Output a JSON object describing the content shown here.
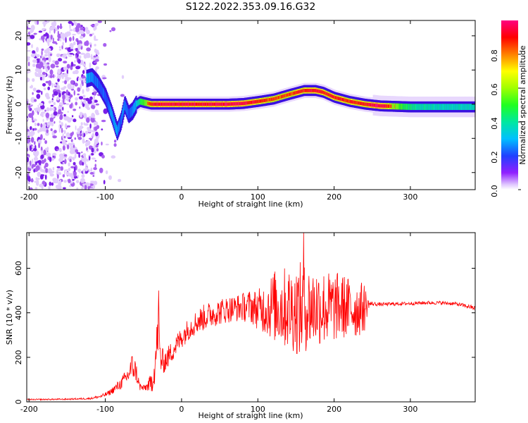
{
  "title": "S122.2022.353.09.16.G32",
  "chart_data": [
    {
      "type": "heatmap",
      "title": "S122.2022.353.09.16.G32",
      "xlabel": "Height of straight line (km)",
      "ylabel": "Frequency (Hz)",
      "xlim": [
        -203,
        385
      ],
      "ylim": [
        -25,
        24.5
      ],
      "xticks": [
        -200,
        -100,
        0,
        100,
        200,
        300
      ],
      "yticks": [
        -20,
        -10,
        0,
        10,
        20
      ],
      "colorbar": {
        "label": "Normalized spectral amplitude",
        "range": [
          0,
          1
        ],
        "ticks": [
          "0.0",
          "0.2",
          "0.4",
          "0.6",
          "0.8"
        ],
        "colormap": "hsv reversed (purple low to red high)"
      },
      "ridge": {
        "x": [
          -125,
          -118,
          -110,
          -100,
          -92,
          -85,
          -80,
          -75,
          -70,
          -65,
          -60,
          -55,
          -50,
          -40,
          -30,
          -20,
          0,
          30,
          60,
          80,
          100,
          120,
          140,
          160,
          175,
          185,
          200,
          220,
          240,
          260,
          300,
          340,
          385
        ],
        "frequency": [
          7.5,
          8,
          6,
          2,
          -3,
          -8,
          -5,
          0,
          -3,
          -2,
          0,
          0.8,
          0.5,
          0,
          0,
          0,
          0,
          0,
          0,
          0.2,
          0.8,
          1.5,
          2.8,
          4,
          4,
          3.5,
          2,
          0.8,
          0,
          -0.5,
          -0.8,
          -0.8,
          -0.8
        ],
        "amplitude": [
          0.4,
          0.35,
          0.3,
          0.3,
          0.35,
          0.4,
          0.3,
          0.35,
          0.3,
          0.35,
          0.4,
          0.6,
          0.7,
          0.9,
          0.95,
          0.95,
          0.95,
          0.95,
          0.95,
          0.95,
          0.9,
          0.85,
          0.85,
          0.9,
          0.95,
          0.9,
          0.9,
          0.9,
          0.9,
          1.0,
          0.55,
          0.5,
          0.5
        ]
      },
      "noise_region_x": [
        -203,
        -110
      ]
    },
    {
      "type": "line",
      "xlabel": "Height of straight line (km)",
      "ylabel": "SNR (10 * v/v)",
      "xlim": [
        -203,
        385
      ],
      "ylim": [
        0,
        760
      ],
      "xticks": [
        -200,
        -100,
        0,
        100,
        200,
        300
      ],
      "yticks": [
        0,
        200,
        400,
        600
      ],
      "color": "#ff0000",
      "series": [
        {
          "x": [
            -203,
            -150,
            -120,
            -105,
            -95,
            -80,
            -70,
            -65,
            -60,
            -55,
            -50,
            -45,
            -40,
            -35,
            -32,
            -30,
            -28,
            -25,
            -20,
            -10,
            0,
            10,
            20,
            30,
            40,
            50,
            60,
            70,
            80,
            90,
            100,
            110,
            120,
            130,
            140,
            150,
            155,
            160,
            170,
            180,
            190,
            200,
            210,
            220,
            230,
            240,
            245,
            250,
            260,
            280,
            300,
            320,
            340,
            360,
            380,
            385
          ],
          "values": [
            10,
            12,
            15,
            25,
            40,
            80,
            120,
            160,
            140,
            70,
            60,
            70,
            80,
            150,
            280,
            350,
            200,
            180,
            190,
            240,
            290,
            330,
            360,
            380,
            395,
            405,
            415,
            420,
            425,
            430,
            415,
            420,
            430,
            425,
            420,
            415,
            410,
            420,
            425,
            430,
            420,
            425,
            430,
            420,
            415,
            425,
            440,
            440,
            438,
            440,
            442,
            445,
            445,
            440,
            425,
            420
          ],
          "spread": [
            3,
            3,
            4,
            8,
            12,
            25,
            40,
            60,
            50,
            20,
            15,
            20,
            50,
            70,
            100,
            130,
            80,
            60,
            50,
            50,
            50,
            50,
            55,
            60,
            60,
            60,
            60,
            60,
            65,
            75,
            90,
            120,
            160,
            180,
            190,
            200,
            220,
            200,
            190,
            180,
            170,
            160,
            150,
            140,
            130,
            110,
            20,
            10,
            8,
            8,
            8,
            8,
            8,
            8,
            10,
            10
          ],
          "peak_annotations": [
            {
              "x": -30,
              "value": 500
            },
            {
              "x": 160,
              "value": 760
            }
          ]
        }
      ]
    }
  ]
}
